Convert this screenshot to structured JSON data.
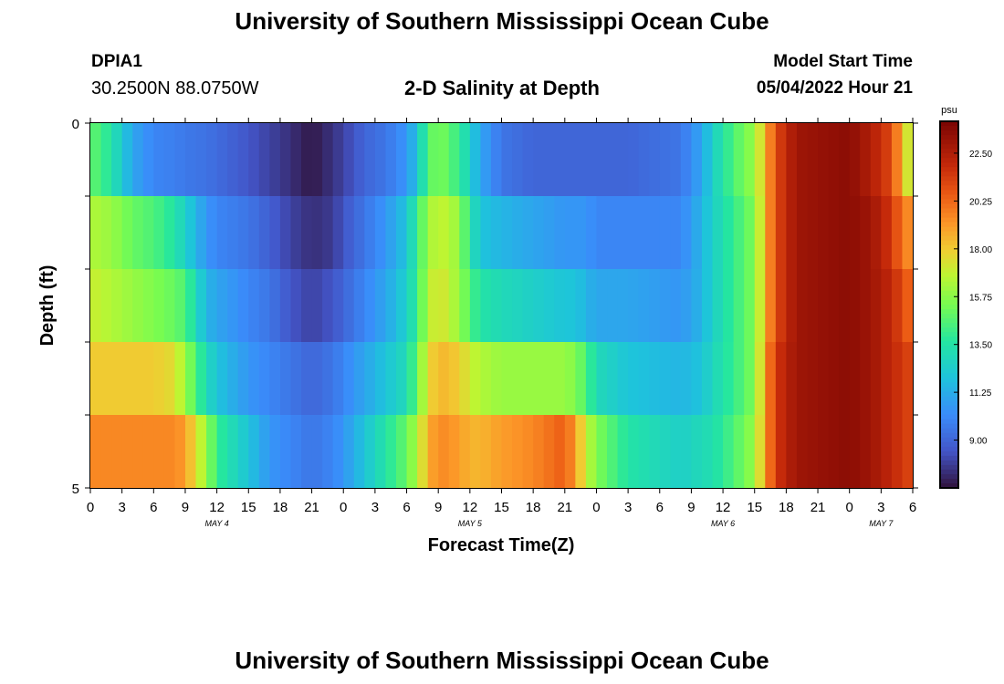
{
  "header": {
    "title": "University of Southern Mississippi Ocean Cube",
    "station_id": "DPIA1",
    "coordinates": "30.2500N  88.0750W",
    "subtitle": "2-D Salinity at Depth",
    "model_start_label": "Model Start Time",
    "model_start_value": "05/04/2022 Hour 21"
  },
  "footer": {
    "title": "University of Southern Mississippi Ocean Cube"
  },
  "chart_data": {
    "type": "heatmap",
    "title": "2-D Salinity at Depth",
    "xlabel": "Forecast Time(Z)",
    "ylabel": "Depth (ft)",
    "colorbar_unit": "psu",
    "colorbar_ticks": [
      "22.50",
      "20.25",
      "18.00",
      "15.75",
      "13.50",
      "11.25",
      "9.00"
    ],
    "colorbar_range": [
      6.75,
      24.0
    ],
    "x_tick_labels": [
      "0",
      "3",
      "6",
      "9",
      "12",
      "15",
      "18",
      "21",
      "0",
      "3",
      "6",
      "9",
      "12",
      "15",
      "18",
      "21",
      "0",
      "3",
      "6",
      "9",
      "12",
      "15",
      "18",
      "21",
      "0",
      "3",
      "6"
    ],
    "x_day_labels": [
      {
        "label": "MAY 4",
        "tick_index": 4
      },
      {
        "label": "MAY 5",
        "tick_index": 12
      },
      {
        "label": "MAY 6",
        "tick_index": 20
      },
      {
        "label": "MAY 7",
        "tick_index": 25
      }
    ],
    "y_tick_labels": [
      "0",
      "",
      "",
      "",
      "",
      "5"
    ],
    "time_range_hours": [
      0,
      78
    ],
    "depth_levels": 5,
    "salinity_keyframes": [
      {
        "t": 0,
        "v": [
          15.0,
          16.5,
          17.0,
          18.0,
          19.5
        ]
      },
      {
        "t": 2,
        "v": [
          13.5,
          16.0,
          16.5,
          18.0,
          19.5
        ]
      },
      {
        "t": 4,
        "v": [
          11.0,
          15.0,
          16.0,
          18.0,
          19.5
        ]
      },
      {
        "t": 6,
        "v": [
          10.0,
          14.5,
          15.5,
          18.0,
          19.5
        ]
      },
      {
        "t": 8,
        "v": [
          9.8,
          13.5,
          15.0,
          17.5,
          19.5
        ]
      },
      {
        "t": 9,
        "v": [
          9.6,
          12.5,
          14.5,
          16.0,
          19.0
        ]
      },
      {
        "t": 10,
        "v": [
          9.5,
          11.5,
          13.0,
          14.5,
          17.5
        ]
      },
      {
        "t": 11,
        "v": [
          9.4,
          10.5,
          11.5,
          13.0,
          16.0
        ]
      },
      {
        "t": 12,
        "v": [
          9.2,
          10.0,
          11.0,
          12.0,
          14.0
        ]
      },
      {
        "t": 15,
        "v": [
          8.5,
          9.5,
          10.0,
          10.5,
          12.0
        ]
      },
      {
        "t": 17,
        "v": [
          8.0,
          8.8,
          9.5,
          10.0,
          10.5
        ]
      },
      {
        "t": 19,
        "v": [
          7.5,
          8.0,
          8.5,
          9.5,
          10.0
        ]
      },
      {
        "t": 21,
        "v": [
          6.9,
          7.5,
          8.0,
          9.0,
          9.5
        ]
      },
      {
        "t": 23,
        "v": [
          7.6,
          7.8,
          8.5,
          9.5,
          10.0
        ]
      },
      {
        "t": 24,
        "v": [
          8.0,
          8.5,
          9.0,
          10.0,
          10.5
        ]
      },
      {
        "t": 26,
        "v": [
          9.0,
          9.5,
          10.0,
          11.0,
          12.0
        ]
      },
      {
        "t": 28,
        "v": [
          9.5,
          10.5,
          11.0,
          12.0,
          13.5
        ]
      },
      {
        "t": 30,
        "v": [
          10.5,
          12.0,
          12.5,
          13.0,
          15.0
        ]
      },
      {
        "t": 31,
        "v": [
          12.0,
          14.0,
          14.0,
          15.0,
          16.5
        ]
      },
      {
        "t": 32,
        "v": [
          14.5,
          16.0,
          16.5,
          17.5,
          18.5
        ]
      },
      {
        "t": 33,
        "v": [
          15.5,
          17.0,
          17.5,
          18.5,
          19.5
        ]
      },
      {
        "t": 35,
        "v": [
          14.0,
          16.0,
          16.0,
          18.0,
          19.0
        ]
      },
      {
        "t": 36,
        "v": [
          12.5,
          13.5,
          14.5,
          17.0,
          18.5
        ]
      },
      {
        "t": 37,
        "v": [
          11.0,
          12.0,
          13.5,
          16.5,
          18.5
        ]
      },
      {
        "t": 39,
        "v": [
          9.5,
          11.5,
          13.0,
          16.0,
          19.0
        ]
      },
      {
        "t": 42,
        "v": [
          9.0,
          11.0,
          12.5,
          16.0,
          19.5
        ]
      },
      {
        "t": 45,
        "v": [
          9.0,
          10.5,
          12.0,
          16.0,
          20.5
        ]
      },
      {
        "t": 46,
        "v": [
          9.0,
          10.5,
          12.0,
          15.5,
          19.0
        ]
      },
      {
        "t": 47,
        "v": [
          9.0,
          10.5,
          11.5,
          14.5,
          17.0
        ]
      },
      {
        "t": 48,
        "v": [
          9.0,
          10.0,
          11.0,
          13.0,
          15.5
        ]
      },
      {
        "t": 51,
        "v": [
          9.0,
          10.0,
          11.0,
          12.0,
          13.5
        ]
      },
      {
        "t": 56,
        "v": [
          9.5,
          10.0,
          10.5,
          11.5,
          12.5
        ]
      },
      {
        "t": 58,
        "v": [
          11.0,
          11.5,
          11.5,
          12.0,
          13.0
        ]
      },
      {
        "t": 59,
        "v": [
          12.5,
          12.5,
          12.5,
          12.8,
          13.2
        ]
      },
      {
        "t": 61,
        "v": [
          14.5,
          14.0,
          14.0,
          14.0,
          14.5
        ]
      },
      {
        "t": 63,
        "v": [
          16.0,
          15.5,
          15.5,
          15.5,
          16.0
        ]
      },
      {
        "t": 64,
        "v": [
          18.5,
          18.5,
          18.5,
          19.0,
          19.0
        ]
      },
      {
        "t": 65,
        "v": [
          21.0,
          21.0,
          21.0,
          21.5,
          21.5
        ]
      },
      {
        "t": 67,
        "v": [
          23.0,
          23.0,
          23.0,
          23.0,
          23.0
        ]
      },
      {
        "t": 72,
        "v": [
          23.5,
          23.5,
          23.5,
          23.5,
          23.5
        ]
      },
      {
        "t": 74,
        "v": [
          22.5,
          23.0,
          23.0,
          23.0,
          23.0
        ]
      },
      {
        "t": 76,
        "v": [
          21.0,
          21.5,
          22.0,
          22.0,
          22.0
        ]
      },
      {
        "t": 77,
        "v": [
          18.5,
          20.0,
          21.0,
          21.5,
          21.5
        ]
      },
      {
        "t": 78,
        "v": [
          16.0,
          19.0,
          20.0,
          21.0,
          21.0
        ]
      }
    ]
  }
}
